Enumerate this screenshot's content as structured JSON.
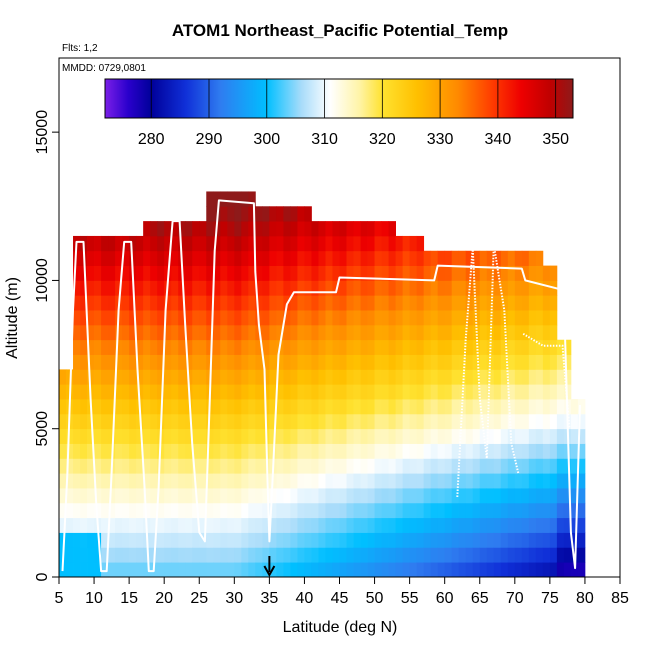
{
  "chart_data": {
    "type": "heatmap",
    "title": "ATOM1 Northeast_Pacific Potential_Temp",
    "subtitle_flights": "Flts: 1,2",
    "subtitle_dates": "MMDD: 0729,0801",
    "xlabel": "Latitude (deg N)",
    "ylabel": "Altitude (m)",
    "xlim": [
      5,
      85
    ],
    "ylim": [
      0,
      17500
    ],
    "x_ticks": [
      5,
      10,
      15,
      20,
      25,
      30,
      35,
      40,
      45,
      50,
      55,
      60,
      65,
      70,
      75,
      80,
      85
    ],
    "y_ticks": [
      0,
      5000,
      10000,
      15000
    ],
    "x_tick_labels": [
      "5",
      "10",
      "15",
      "20",
      "25",
      "30",
      "35",
      "40",
      "45",
      "50",
      "55",
      "60",
      "65",
      "70",
      "75",
      "80",
      "85"
    ],
    "y_tick_labels": [
      "0",
      "5000",
      "10000",
      "15000"
    ],
    "colorbar": {
      "range": [
        272,
        353
      ],
      "ticks": [
        280,
        290,
        300,
        310,
        320,
        330,
        340,
        350
      ],
      "tick_labels": [
        "280",
        "290",
        "300",
        "310",
        "320",
        "330",
        "340",
        "350"
      ]
    },
    "marker_latitude": 35,
    "column_tops_m": [
      [
        5,
        7,
        7000
      ],
      [
        7,
        17,
        11500
      ],
      [
        17,
        26,
        12000
      ],
      [
        26,
        33,
        13000
      ],
      [
        33,
        41,
        12500
      ],
      [
        41,
        53,
        12000
      ],
      [
        53,
        57,
        11500
      ],
      [
        57,
        71,
        11000
      ],
      [
        71,
        74,
        10700
      ],
      [
        74,
        76,
        10200
      ],
      [
        76,
        78,
        8000
      ],
      [
        78,
        80,
        6000
      ]
    ],
    "flight_track": [
      [
        5.5,
        200
      ],
      [
        6.2,
        3500
      ],
      [
        7.0,
        9000
      ],
      [
        7.5,
        11300
      ],
      [
        8.5,
        11300
      ],
      [
        9.5,
        6000
      ],
      [
        10.3,
        2500
      ],
      [
        11.0,
        200
      ],
      [
        11.8,
        200
      ],
      [
        12.5,
        3500
      ],
      [
        13.5,
        9000
      ],
      [
        14.3,
        11300
      ],
      [
        15.3,
        11300
      ],
      [
        16.2,
        7000
      ],
      [
        17.2,
        3000
      ],
      [
        17.8,
        200
      ],
      [
        18.5,
        200
      ],
      [
        19.2,
        3000
      ],
      [
        20.2,
        9000
      ],
      [
        21.2,
        12000
      ],
      [
        22.2,
        12000
      ],
      [
        23.0,
        8500
      ],
      [
        24.0,
        4500
      ],
      [
        25.0,
        1500
      ],
      [
        25.8,
        1200
      ],
      [
        26.5,
        6000
      ],
      [
        27.2,
        11000
      ],
      [
        27.8,
        12700
      ],
      [
        32.8,
        12600
      ],
      [
        33.0,
        10300
      ],
      [
        33.5,
        8500
      ],
      [
        34.3,
        7000
      ],
      [
        34.7,
        3500
      ],
      [
        35.0,
        1200
      ],
      [
        35.5,
        3500
      ],
      [
        36.3,
        7500
      ],
      [
        37.5,
        9200
      ],
      [
        38.5,
        9600
      ],
      [
        44.5,
        9600
      ],
      [
        45.0,
        10100
      ],
      [
        58.5,
        10000
      ],
      [
        59.0,
        10500
      ],
      [
        71.0,
        10400
      ],
      [
        71.5,
        10000
      ],
      [
        76.5,
        9700
      ],
      [
        77.0,
        9400
      ],
      [
        78.0,
        1500
      ],
      [
        78.6,
        300
      ],
      [
        79.3,
        5800
      ]
    ],
    "descent_legs": [
      [
        [
          61.8,
          2700
        ],
        [
          63.0,
          8000
        ],
        [
          64.0,
          11100
        ],
        [
          65.0,
          6000
        ],
        [
          66.0,
          4000
        ],
        [
          67.0,
          11200
        ],
        [
          68.5,
          9000
        ],
        [
          69.5,
          4500
        ],
        [
          70.5,
          3500
        ]
      ],
      [
        [
          71.2,
          8200
        ],
        [
          74.0,
          7800
        ],
        [
          76.8,
          7800
        ],
        [
          77.8,
          5000
        ]
      ]
    ]
  }
}
